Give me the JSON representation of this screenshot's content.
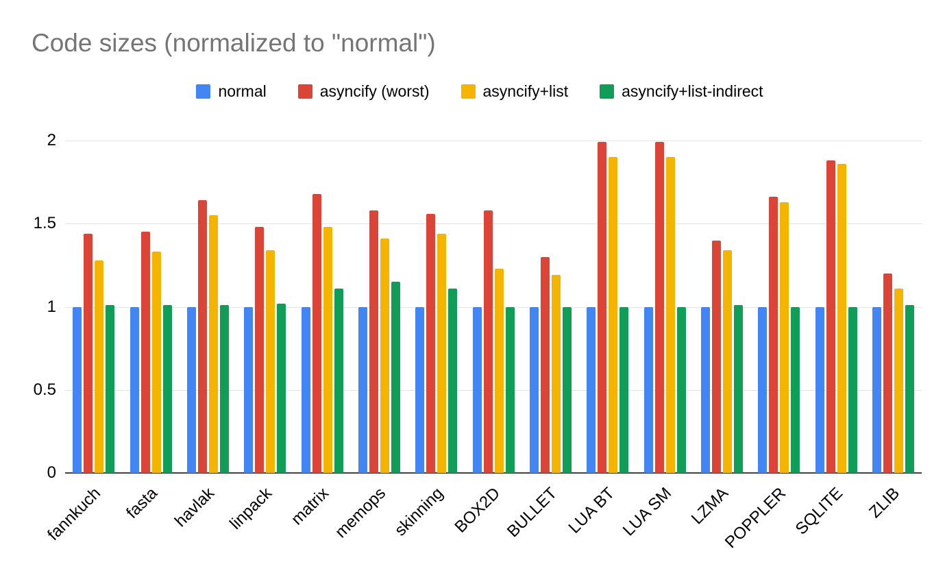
{
  "title": "Code sizes (normalized to \"normal\")",
  "chart_data": {
    "type": "bar",
    "title": "Code sizes (normalized to \"normal\")",
    "xlabel": "",
    "ylabel": "",
    "ylim": [
      0,
      2
    ],
    "yticks": [
      0,
      0.5,
      1,
      1.5,
      2
    ],
    "ytick_labels": [
      "0",
      "0.5",
      "1",
      "1.5",
      "2"
    ],
    "grid": true,
    "legend_position": "top",
    "categories": [
      "fannkuch",
      "fasta",
      "havlak",
      "linpack",
      "matrix",
      "memops",
      "skinning",
      "BOX2D",
      "BULLET",
      "LUA BT",
      "LUA SM",
      "LZMA",
      "POPPLER",
      "SQLITE",
      "ZLIB"
    ],
    "series": [
      {
        "name": "normal",
        "color": "#4285F4",
        "values": [
          1.0,
          1.0,
          1.0,
          1.0,
          1.0,
          1.0,
          1.0,
          1.0,
          1.0,
          1.0,
          1.0,
          1.0,
          1.0,
          1.0,
          1.0
        ]
      },
      {
        "name": "asyncify (worst)",
        "color": "#DB4437",
        "values": [
          1.44,
          1.45,
          1.64,
          1.48,
          1.68,
          1.58,
          1.56,
          1.58,
          1.3,
          1.99,
          1.99,
          1.4,
          1.66,
          1.88,
          1.2
        ]
      },
      {
        "name": "asyncify+list",
        "color": "#F4B400",
        "values": [
          1.28,
          1.33,
          1.55,
          1.34,
          1.48,
          1.41,
          1.44,
          1.23,
          1.19,
          1.9,
          1.9,
          1.34,
          1.63,
          1.86,
          1.11
        ]
      },
      {
        "name": "asyncify+list-indirect",
        "color": "#0F9D58",
        "values": [
          1.01,
          1.01,
          1.01,
          1.02,
          1.11,
          1.15,
          1.11,
          1.0,
          1.0,
          1.0,
          1.0,
          1.01,
          1.0,
          1.0,
          1.01
        ]
      }
    ]
  },
  "colors": {
    "background": "#ffffff",
    "title_text": "#757575",
    "axis_text": "#000000",
    "gridline": "#e3e3e3",
    "baseline": "#424242"
  }
}
